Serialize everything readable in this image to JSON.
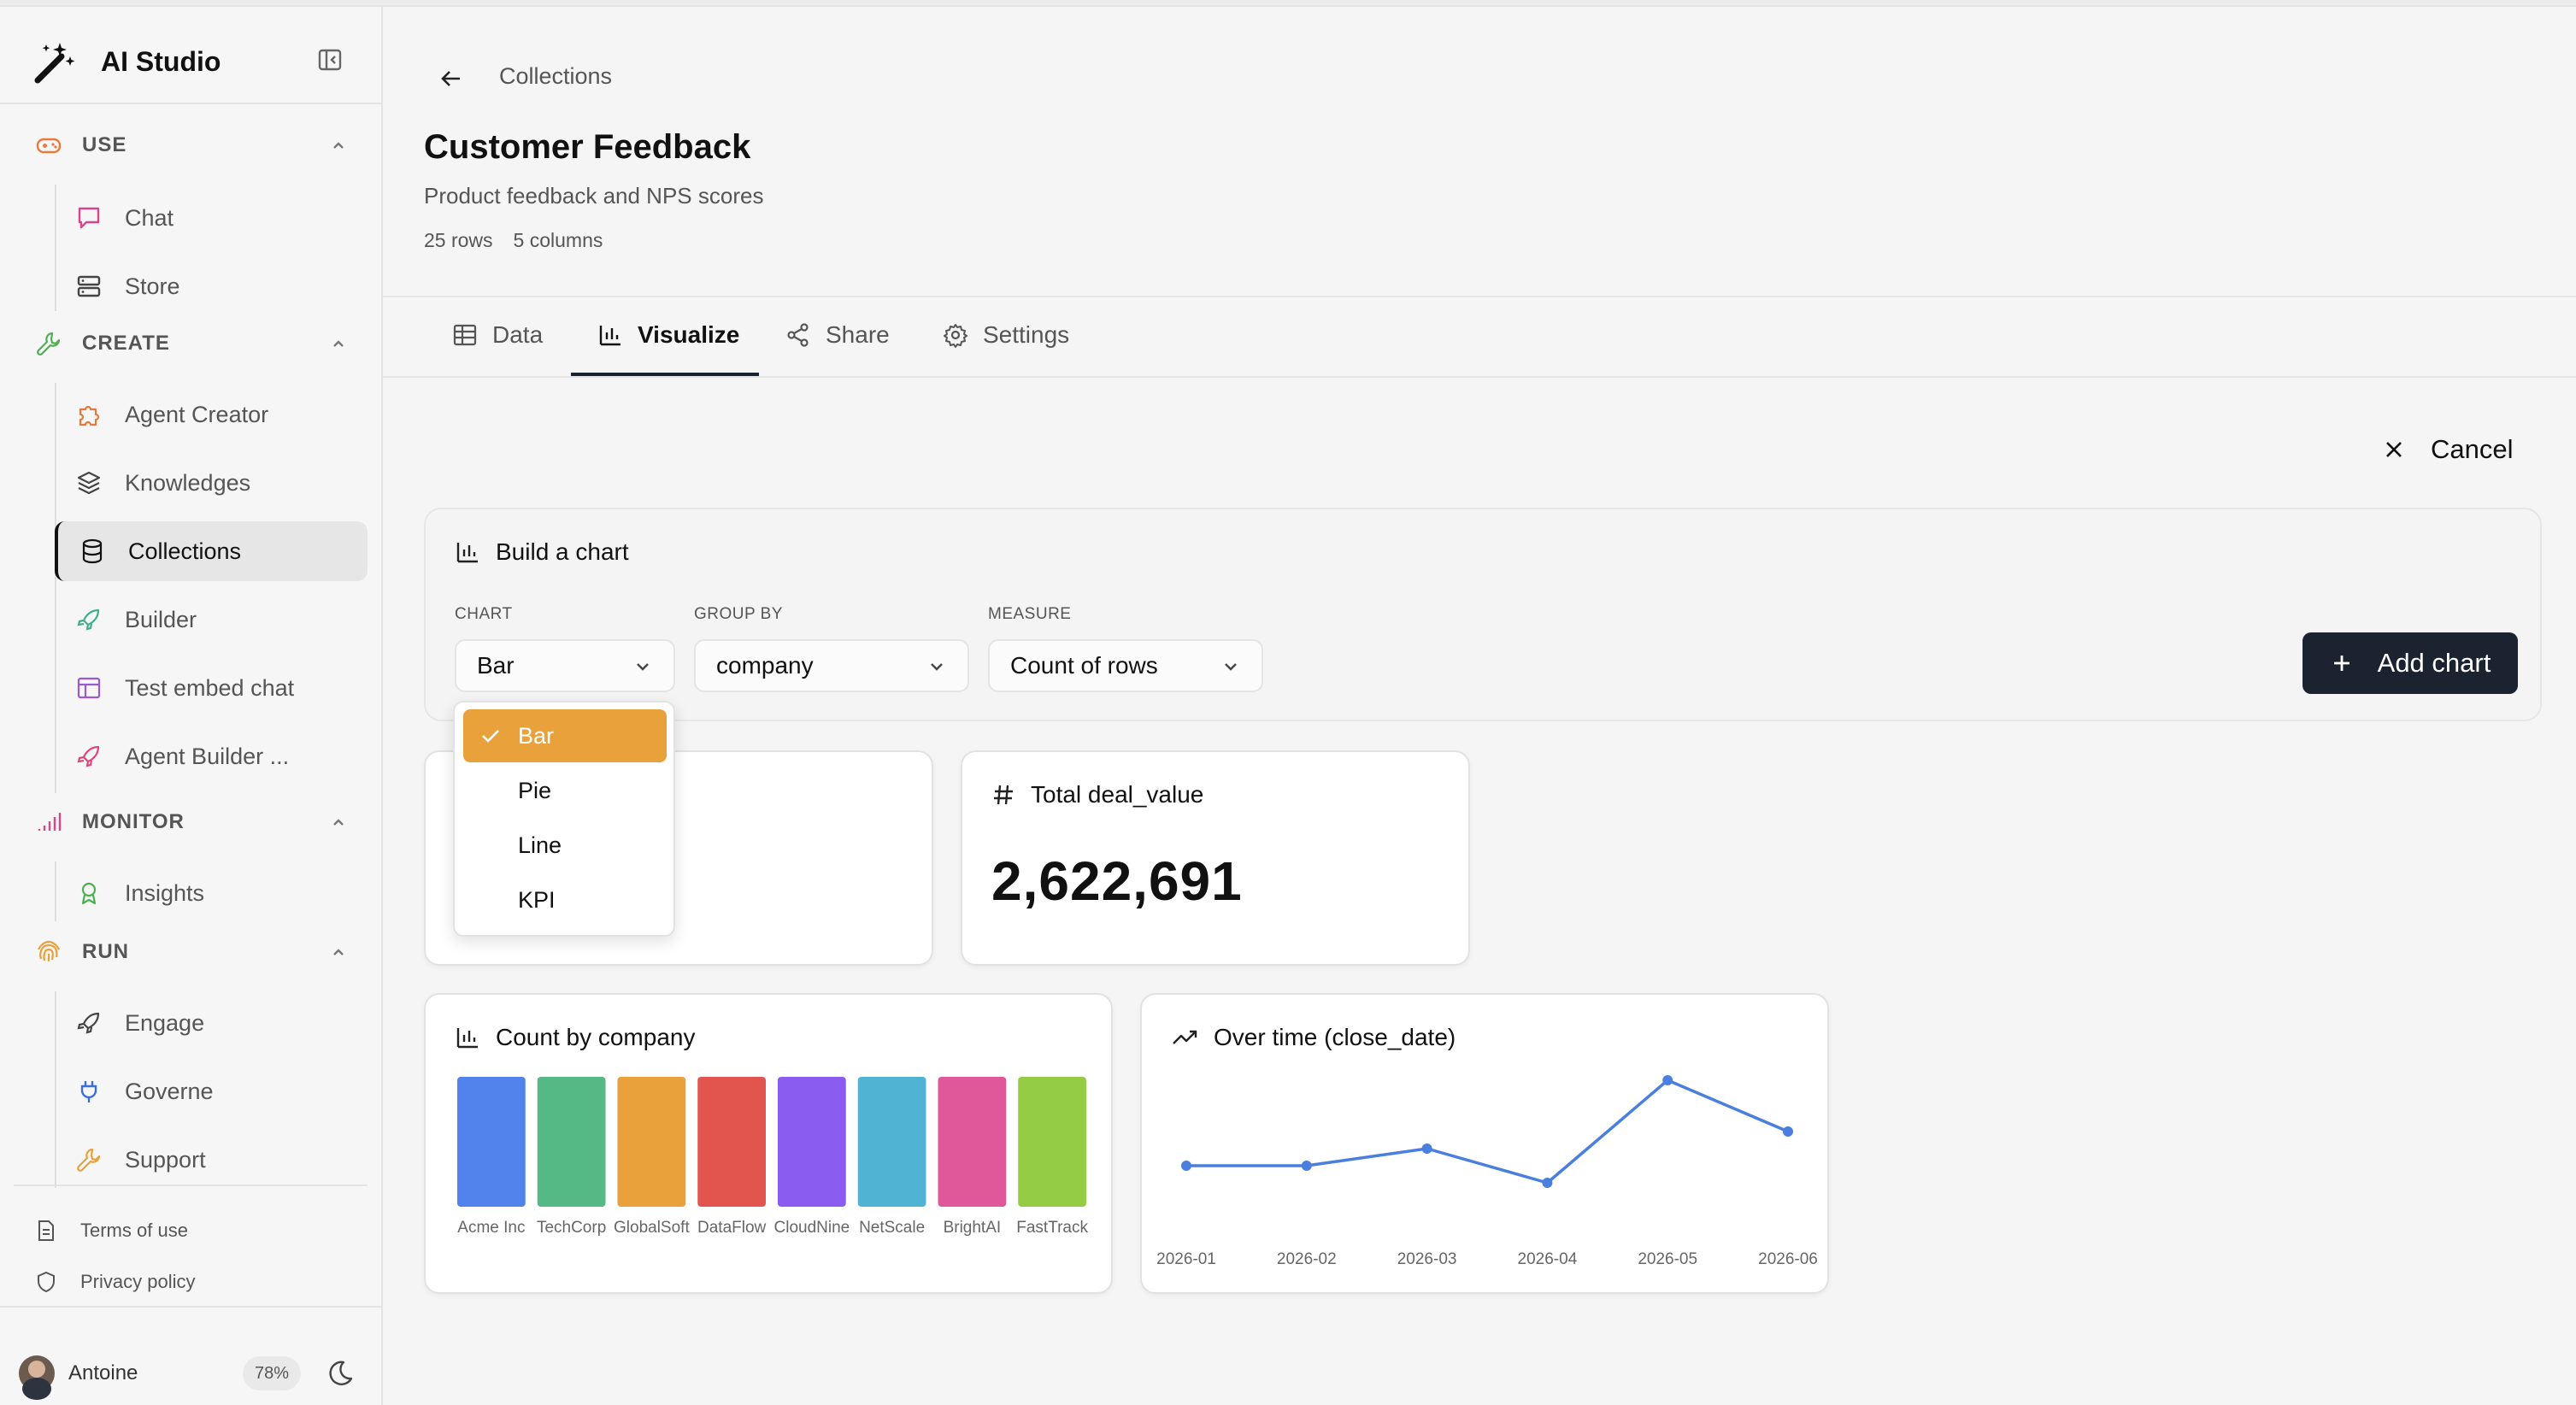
{
  "app": {
    "name": "AI Studio"
  },
  "sidebar": {
    "sections": [
      {
        "label": "USE",
        "items": [
          {
            "label": "Chat"
          },
          {
            "label": "Store"
          }
        ]
      },
      {
        "label": "CREATE",
        "items": [
          {
            "label": "Agent Creator"
          },
          {
            "label": "Knowledges"
          },
          {
            "label": "Collections"
          },
          {
            "label": "Builder"
          },
          {
            "label": "Test embed chat"
          },
          {
            "label": "Agent Builder ..."
          }
        ]
      },
      {
        "label": "MONITOR",
        "items": [
          {
            "label": "Insights"
          }
        ]
      },
      {
        "label": "RUN",
        "items": [
          {
            "label": "Engage"
          },
          {
            "label": "Governe"
          },
          {
            "label": "Support"
          }
        ]
      }
    ],
    "active_item": "Collections",
    "footer_links": [
      {
        "label": "Terms of use"
      },
      {
        "label": "Privacy policy"
      }
    ],
    "user": {
      "name": "Antoine",
      "usage": "78%"
    }
  },
  "breadcrumb": {
    "parent": "Collections"
  },
  "page": {
    "title": "Customer Feedback",
    "subtitle": "Product feedback and NPS scores",
    "rows": "25 rows",
    "columns": "5 columns"
  },
  "tabs": [
    {
      "label": "Data"
    },
    {
      "label": "Visualize"
    },
    {
      "label": "Share"
    },
    {
      "label": "Settings"
    }
  ],
  "active_tab": "Visualize",
  "cancel_label": "Cancel",
  "builder": {
    "title": "Build a chart",
    "chart_label": "CHART",
    "chart_value": "Bar",
    "group_label": "GROUP BY",
    "group_value": "company",
    "measure_label": "MEASURE",
    "measure_value": "Count of rows",
    "add_label": "Add chart"
  },
  "dropdown": {
    "options": [
      "Bar",
      "Pie",
      "Line",
      "KPI"
    ],
    "selected": "Bar"
  },
  "kpi": {
    "title": "Total deal_value",
    "value": "2,622,691"
  },
  "colors": {
    "accent": "#e9a23b",
    "primary_dark": "#1b2330",
    "line": "#4a7fe0"
  },
  "chart_data": [
    {
      "type": "bar",
      "title": "Count by company",
      "categories": [
        "Acme Inc",
        "TechCorp",
        "GlobalSoft",
        "DataFlow",
        "CloudNine",
        "NetScale",
        "BrightAI",
        "FastTrack"
      ],
      "values": [
        1,
        1,
        1,
        1,
        1,
        1,
        1,
        1
      ],
      "colors": [
        "#5282ec",
        "#55b985",
        "#e9a23b",
        "#e2544e",
        "#8a5cf0",
        "#51b3d3",
        "#e0579a",
        "#94cc44"
      ],
      "ylim": [
        0,
        1
      ],
      "grid": false,
      "legend": "none"
    },
    {
      "type": "line",
      "title": "Over time (close_date)",
      "x": [
        "2026-01",
        "2026-02",
        "2026-03",
        "2026-04",
        "2026-05",
        "2026-06"
      ],
      "values": [
        430000,
        430000,
        470000,
        390000,
        630000,
        510000
      ],
      "grid": false,
      "legend": "none"
    }
  ]
}
